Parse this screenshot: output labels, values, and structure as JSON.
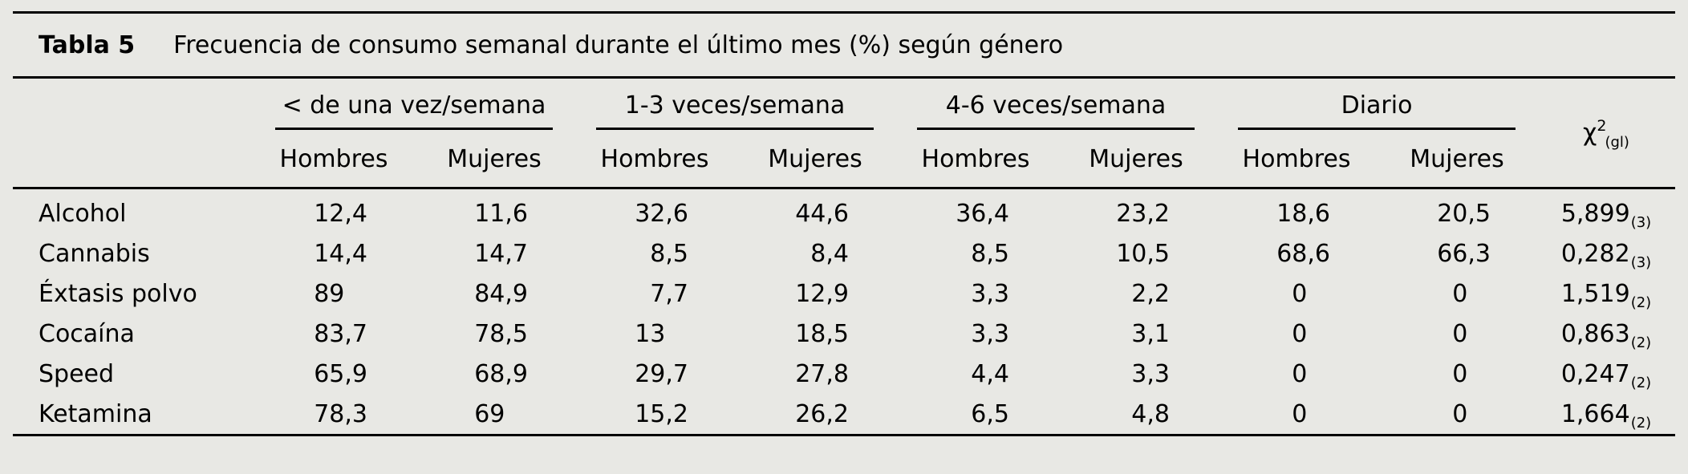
{
  "table": {
    "label": "Tabla 5",
    "title": "Frecuencia de consumo semanal durante el último mes (%) según género",
    "groups": [
      {
        "label": "< de una vez/semana"
      },
      {
        "label": "1-3 veces/semana"
      },
      {
        "label": "4-6 veces/semana"
      },
      {
        "label": "Diario"
      }
    ],
    "subheaders": [
      "Hombres",
      "Mujeres"
    ],
    "chi_header": {
      "base": "χ",
      "sup": "2",
      "sub": "(gl)"
    },
    "rows": [
      {
        "label": "Alcohol",
        "values": [
          "12,4",
          "11,6",
          "32,6",
          "44,6",
          "36,4",
          "23,2",
          "18,6",
          "20,5"
        ],
        "chi": {
          "value": "5,899",
          "df": "(3)"
        }
      },
      {
        "label": "Cannabis",
        "values": [
          "14,4",
          "14,7",
          "8,5",
          "8,4",
          "8,5",
          "10,5",
          "68,6",
          "66,3"
        ],
        "chi": {
          "value": "0,282",
          "df": "(3)"
        }
      },
      {
        "label": "Éxtasis polvo",
        "values": [
          "89",
          "84,9",
          "7,7",
          "12,9",
          "3,3",
          "2,2",
          "0",
          "0"
        ],
        "chi": {
          "value": "1,519",
          "df": "(2)"
        }
      },
      {
        "label": "Cocaína",
        "values": [
          "83,7",
          "78,5",
          "13",
          "18,5",
          "3,3",
          "3,1",
          "0",
          "0"
        ],
        "chi": {
          "value": "0,863",
          "df": "(2)"
        }
      },
      {
        "label": "Speed",
        "values": [
          "65,9",
          "68,9",
          "29,7",
          "27,8",
          "4,4",
          "3,3",
          "0",
          "0"
        ],
        "chi": {
          "value": "0,247",
          "df": "(2)"
        }
      },
      {
        "label": "Ketamina",
        "values": [
          "78,3",
          "69",
          "15,2",
          "26,2",
          "6,5",
          "4,8",
          "0",
          "0"
        ],
        "chi": {
          "value": "1,664",
          "df": "(2)"
        }
      }
    ],
    "colors": {
      "background": "#e8e8e4",
      "text": "#000000",
      "rule": "#000000"
    }
  }
}
